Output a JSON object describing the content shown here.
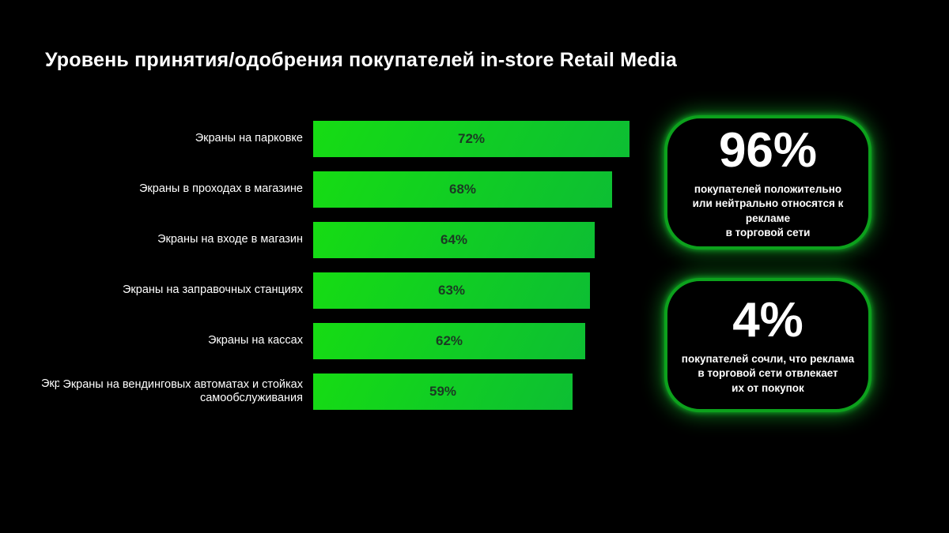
{
  "title": "Уровень принятия/одобрения покупателей in-store Retail Media",
  "chart_data": {
    "type": "bar",
    "orientation": "horizontal",
    "title": "Уровень принятия/одобрения покупателей in-store Retail Media",
    "categories": [
      "Экраны на парковке",
      "Экраны в проходах в магазине",
      "Экраны на входе в магазин",
      "Экраны на заправочных станциях",
      "Экраны на кассах",
      "Экраны на вендинговых автоматах и стойках самообслуживания"
    ],
    "values": [
      72,
      68,
      64,
      63,
      62,
      59
    ],
    "unit": "%",
    "xlim": [
      0,
      72
    ],
    "grid": false,
    "value_labels_inside": true,
    "bar_gradient": [
      "#16DC13",
      "#0DBE33"
    ],
    "value_label_color": "#1B3A23",
    "label_color": "#FFFFFF"
  },
  "stray_fragment": "Экраны",
  "cards": [
    {
      "value": "96%",
      "description": "покупателей положительно\nили нейтрально относятся к рекламе\nв торговой сети"
    },
    {
      "value": "4%",
      "description": "покупателей сочли, что реклама\nв торговой сети отвлекает\nих от покупок"
    }
  ],
  "colors": {
    "background": "#000000",
    "accent_green": "#0CA11C",
    "glow_green": "#17D130",
    "text_white": "#FFFFFF"
  }
}
